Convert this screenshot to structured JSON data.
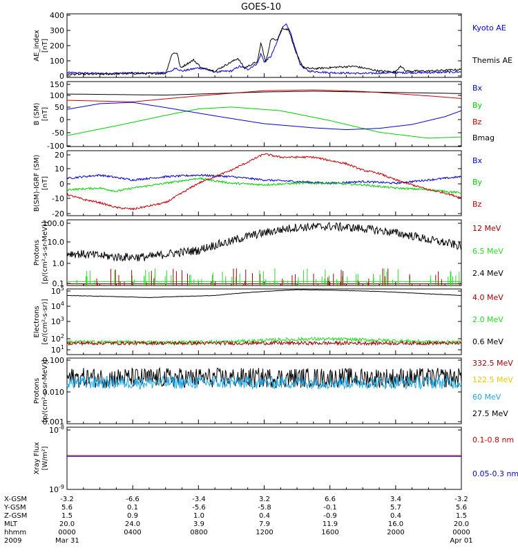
{
  "title": "GOES-10",
  "colors": {
    "black": "#000000",
    "blue": "#0000d8",
    "red": "#c80000",
    "green": "#00d000",
    "darkred": "#a00000",
    "lime": "#22dd22",
    "orange": "#e8c800",
    "cyan": "#1ea8e6"
  },
  "chart_data": [
    {
      "type": "line",
      "id": "ae",
      "ylabel": "AE_index [nT]",
      "ylim": [
        0,
        400
      ],
      "yticks": [
        "400",
        "300",
        "200",
        "100",
        "0"
      ],
      "x_hours": [
        0,
        24
      ],
      "legend": [
        {
          "label": "Kyoto AE",
          "color": "blue"
        },
        {
          "label": "Themis AE",
          "color": "black"
        }
      ],
      "series": [
        {
          "name": "Kyoto AE",
          "color": "blue",
          "points": [
            [
              0,
              30
            ],
            [
              2,
              25
            ],
            [
              4,
              28
            ],
            [
              5,
              25
            ],
            [
              6.3,
              35
            ],
            [
              6.6,
              60
            ],
            [
              7,
              40
            ],
            [
              8,
              60
            ],
            [
              8.5,
              50
            ],
            [
              9,
              35
            ],
            [
              10,
              40
            ],
            [
              10.5,
              70
            ],
            [
              11,
              50
            ],
            [
              11.6,
              90
            ],
            [
              11.8,
              150
            ],
            [
              12,
              100
            ],
            [
              12.4,
              130
            ],
            [
              12.7,
              200
            ],
            [
              13.1,
              310
            ],
            [
              13.3,
              340
            ],
            [
              13.6,
              280
            ],
            [
              13.9,
              180
            ],
            [
              14.2,
              80
            ],
            [
              14.7,
              40
            ],
            [
              16,
              30
            ],
            [
              18,
              25
            ],
            [
              20,
              30
            ],
            [
              22,
              30
            ],
            [
              24,
              35
            ]
          ]
        },
        {
          "name": "Themis AE",
          "color": "black",
          "points": [
            [
              0,
              20
            ],
            [
              2,
              20
            ],
            [
              4,
              25
            ],
            [
              6,
              25
            ],
            [
              6.4,
              150
            ],
            [
              6.7,
              155
            ],
            [
              6.9,
              60
            ],
            [
              7.7,
              110
            ],
            [
              8.2,
              60
            ],
            [
              9,
              40
            ],
            [
              10.4,
              120
            ],
            [
              10.8,
              60
            ],
            [
              11.6,
              100
            ],
            [
              11.8,
              220
            ],
            [
              12.1,
              90
            ],
            [
              12.4,
              240
            ],
            [
              12.8,
              240
            ],
            [
              13.1,
              310
            ],
            [
              13.5,
              300
            ],
            [
              13.9,
              160
            ],
            [
              14.4,
              60
            ],
            [
              15,
              55
            ],
            [
              16.5,
              65
            ],
            [
              17.5,
              70
            ],
            [
              19,
              40
            ],
            [
              20,
              35
            ],
            [
              20.3,
              75
            ],
            [
              20.6,
              40
            ],
            [
              22,
              40
            ],
            [
              24,
              50
            ]
          ]
        }
      ]
    },
    {
      "type": "line",
      "id": "bfield",
      "ylabel": "B (SM) [nT]",
      "ylim": [
        -100,
        150
      ],
      "yticks": [
        "150",
        "100",
        "50",
        "0",
        "-50",
        "-100"
      ],
      "legend": [
        {
          "label": "Bx",
          "color": "blue"
        },
        {
          "label": "By",
          "color": "green"
        },
        {
          "label": "Bz",
          "color": "red"
        },
        {
          "label": "Bmag",
          "color": "black"
        }
      ],
      "series": [
        {
          "name": "Bmag",
          "color": "black",
          "points": [
            [
              0,
              102
            ],
            [
              6,
              98
            ],
            [
              12,
              110
            ],
            [
              15,
              113
            ],
            [
              18,
              110
            ],
            [
              24,
              104
            ]
          ]
        },
        {
          "name": "Bz",
          "color": "red",
          "points": [
            [
              0,
              78
            ],
            [
              4,
              72
            ],
            [
              8,
              95
            ],
            [
              12,
              115
            ],
            [
              15,
              118
            ],
            [
              18,
              112
            ],
            [
              22,
              95
            ],
            [
              24,
              85
            ]
          ]
        },
        {
          "name": "By",
          "color": "green",
          "points": [
            [
              0,
              -58
            ],
            [
              3,
              -20
            ],
            [
              6,
              20
            ],
            [
              8,
              45
            ],
            [
              10,
              52
            ],
            [
              13,
              38
            ],
            [
              16,
              0
            ],
            [
              19,
              -45
            ],
            [
              22,
              -68
            ],
            [
              24,
              -63
            ]
          ]
        },
        {
          "name": "Bx",
          "color": "blue",
          "points": [
            [
              0,
              43
            ],
            [
              2,
              65
            ],
            [
              4,
              70
            ],
            [
              6,
              50
            ],
            [
              9,
              18
            ],
            [
              12,
              -12
            ],
            [
              15,
              -28
            ],
            [
              17,
              -35
            ],
            [
              19,
              -30
            ],
            [
              21,
              -15
            ],
            [
              23,
              15
            ],
            [
              24,
              38
            ]
          ]
        }
      ]
    },
    {
      "type": "line",
      "id": "bdiff",
      "ylabel": "B(SM)-IGRF (SM) [nT]",
      "ylim": [
        -20,
        20
      ],
      "yticks": [
        "20",
        "10",
        "0",
        "-10",
        "-20"
      ],
      "legend": [
        {
          "label": "Bx",
          "color": "blue"
        },
        {
          "label": "By",
          "color": "green"
        },
        {
          "label": "Bz",
          "color": "red"
        }
      ],
      "series": [
        {
          "name": "Bx",
          "color": "blue",
          "points": [
            [
              0,
              3
            ],
            [
              2,
              5
            ],
            [
              4,
              2
            ],
            [
              6,
              4
            ],
            [
              8,
              5
            ],
            [
              10,
              4
            ],
            [
              12,
              2
            ],
            [
              14,
              1
            ],
            [
              16,
              0
            ],
            [
              18,
              1
            ],
            [
              20,
              0
            ],
            [
              22,
              2
            ],
            [
              24,
              4
            ]
          ]
        },
        {
          "name": "By",
          "color": "green",
          "points": [
            [
              0,
              -4
            ],
            [
              2,
              -3
            ],
            [
              3,
              -5
            ],
            [
              4,
              -3
            ],
            [
              6,
              0
            ],
            [
              8,
              3
            ],
            [
              10,
              0
            ],
            [
              12,
              -1
            ],
            [
              14,
              0
            ],
            [
              16,
              0
            ],
            [
              18,
              -1
            ],
            [
              20,
              -3
            ],
            [
              22,
              -4
            ],
            [
              24,
              -6
            ]
          ]
        },
        {
          "name": "Bz",
          "color": "red",
          "points": [
            [
              0,
              -7
            ],
            [
              1,
              -10
            ],
            [
              2,
              -12
            ],
            [
              3,
              -15
            ],
            [
              4,
              -16
            ],
            [
              6,
              -12
            ],
            [
              8,
              0
            ],
            [
              9,
              4
            ],
            [
              10,
              8
            ],
            [
              11,
              13
            ],
            [
              12,
              18
            ],
            [
              13,
              16
            ],
            [
              15,
              16
            ],
            [
              17,
              12
            ],
            [
              18,
              8
            ],
            [
              19,
              6
            ],
            [
              20,
              2
            ],
            [
              21,
              -1
            ],
            [
              22,
              -4
            ],
            [
              23,
              -6
            ],
            [
              24,
              -9
            ]
          ]
        }
      ]
    },
    {
      "type": "line",
      "id": "protons_mev",
      "ylabel": "Protons [p/(cm2-s-sr-MeV)]",
      "yscale": "log",
      "ylim": [
        0.1,
        100
      ],
      "yticks": [
        "100.0",
        "10.0",
        "1.0",
        "0.1"
      ],
      "legend": [
        {
          "label": "12 MeV",
          "color": "darkred"
        },
        {
          "label": "6.5 MeV",
          "color": "lime"
        },
        {
          "label": "2.4 MeV",
          "color": "black"
        }
      ],
      "series": [
        {
          "name": "2.4 MeV",
          "color": "black",
          "points": [
            [
              0,
              3
            ],
            [
              3,
              2
            ],
            [
              5,
              2
            ],
            [
              8,
              4
            ],
            [
              10,
              10
            ],
            [
              12,
              25
            ],
            [
              14,
              45
            ],
            [
              16,
              50
            ],
            [
              18,
              40
            ],
            [
              20,
              25
            ],
            [
              22,
              12
            ],
            [
              24,
              6
            ]
          ]
        },
        {
          "name": "6.5 MeV",
          "color": "lime",
          "points": [
            [
              0,
              0.15
            ],
            [
              24,
              0.15
            ]
          ]
        },
        {
          "name": "12 MeV",
          "color": "darkred",
          "points": [
            [
              0,
              0.12
            ],
            [
              24,
              0.12
            ]
          ]
        }
      ]
    },
    {
      "type": "line",
      "id": "electrons",
      "ylabel": "Electrons [e/(cm2-s-sr)]",
      "yscale": "log",
      "ylim": [
        10,
        100000
      ],
      "yticks": [
        "10^5",
        "10^4",
        "10^3",
        "10^2",
        "10^1"
      ],
      "legend": [
        {
          "label": "4.0 MeV",
          "color": "darkred"
        },
        {
          "label": "2.0 MeV",
          "color": "lime"
        },
        {
          "label": "0.6 MeV",
          "color": "black"
        }
      ],
      "series": [
        {
          "name": "0.6 MeV",
          "color": "black",
          "points": [
            [
              0,
              40000
            ],
            [
              5,
              30000
            ],
            [
              9,
              40000
            ],
            [
              12,
              70000
            ],
            [
              14,
              90000
            ],
            [
              16,
              85000
            ],
            [
              19,
              70000
            ],
            [
              22,
              50000
            ],
            [
              24,
              40000
            ]
          ]
        },
        {
          "name": "2.0 MeV",
          "color": "lime",
          "points": [
            [
              0,
              60
            ],
            [
              6,
              55
            ],
            [
              10,
              60
            ],
            [
              13,
              80
            ],
            [
              15,
              90
            ],
            [
              18,
              80
            ],
            [
              22,
              60
            ],
            [
              24,
              55
            ]
          ]
        },
        {
          "name": "4.0 MeV",
          "color": "darkred",
          "points": [
            [
              0,
              50
            ],
            [
              24,
              50
            ]
          ]
        }
      ]
    },
    {
      "type": "line",
      "id": "protons_hi",
      "ylabel": "Protons [p/(cm2-s-sr-MeV)]",
      "yscale": "log",
      "ylim": [
        0.001,
        0.1
      ],
      "yticks": [
        "0.100",
        "0.010",
        "0.001"
      ],
      "legend": [
        {
          "label": "332.5 MeV",
          "color": "darkred"
        },
        {
          "label": "122.5 MeV",
          "color": "orange"
        },
        {
          "label": "60 MeV",
          "color": "cyan"
        },
        {
          "label": "27.5 MeV",
          "color": "black"
        }
      ],
      "series": [
        {
          "name": "27.5 MeV",
          "color": "black",
          "points": [
            [
              0,
              0.025
            ],
            [
              24,
              0.025
            ]
          ]
        },
        {
          "name": "60 MeV",
          "color": "cyan",
          "points": [
            [
              0,
              0.018
            ],
            [
              24,
              0.018
            ]
          ]
        }
      ]
    },
    {
      "type": "line",
      "id": "xray",
      "ylabel": "Xray Flux [W/m2]",
      "yscale": "log",
      "ylim": [
        1e-09,
        1e-08
      ],
      "yticks": [
        "10^-8",
        "10^-9"
      ],
      "legend": [
        {
          "label": "0.1-0.8 nm",
          "color": "red"
        },
        {
          "label": "0.05-0.3 nm",
          "color": "blue"
        }
      ],
      "series": [
        {
          "name": "0.1-0.8 nm",
          "color": "red",
          "points": [
            [
              0,
              3.5e-09
            ],
            [
              24,
              3.5e-09
            ]
          ]
        },
        {
          "name": "0.05-0.3 nm",
          "color": "blue",
          "points": [
            [
              0,
              3.4e-09
            ],
            [
              24,
              3.4e-09
            ]
          ]
        }
      ]
    }
  ],
  "x_axis": {
    "rows": [
      {
        "label": "X-GSM",
        "values": [
          "-3.2",
          "-6.6",
          "-3.4",
          "3.2",
          "6.6",
          "3.4",
          "-3.2"
        ]
      },
      {
        "label": "Y-GSM",
        "values": [
          "5.6",
          "0.1",
          "-5.6",
          "-5.8",
          "-0.1",
          "5.7",
          "5.6"
        ]
      },
      {
        "label": "Z-GSM",
        "values": [
          "1.5",
          "0.9",
          "1.0",
          "0.4",
          "-0.9",
          "0.4",
          "1.5"
        ]
      },
      {
        "label": "MLT",
        "values": [
          "20.0",
          "24.0",
          "3.9",
          "7.9",
          "11.9",
          "16.0",
          "20.0"
        ]
      },
      {
        "label": "hhmm",
        "values": [
          "0000",
          "0400",
          "0800",
          "1200",
          "1600",
          "2000",
          "0000"
        ]
      },
      {
        "label": "2009",
        "values": [
          "Mar 31",
          "",
          "",
          "",
          "",
          "",
          "Apr 01"
        ]
      }
    ]
  }
}
